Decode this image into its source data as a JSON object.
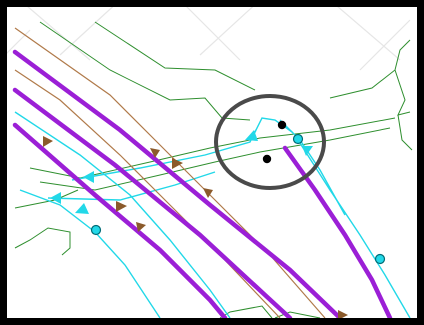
{
  "map": {
    "colors": {
      "border": "#000000",
      "background": "#ffffff",
      "watermark_lines": "#e6e6e6",
      "boundary": "#2f8f2f",
      "rail": "#9b1fd6",
      "water": "#22d8e8",
      "route": "#b07a4a",
      "arrow_fill": "#8b5a2b",
      "highlight_circle": "#4a4a4a",
      "junction_point": "#000000",
      "station_point": "#22d8e8",
      "station_outline": "#006b75"
    },
    "icons": {
      "highlight": "ring-highlight-icon",
      "junction": "junction-point-icon",
      "station": "station-point-icon",
      "flow_arrow": "flow-arrow-icon",
      "route_arrow": "route-arrow-icon"
    },
    "layers": [
      "watermark",
      "boundary-lines",
      "water-lines",
      "route-lines",
      "rail-lines",
      "point-features",
      "highlight"
    ]
  }
}
